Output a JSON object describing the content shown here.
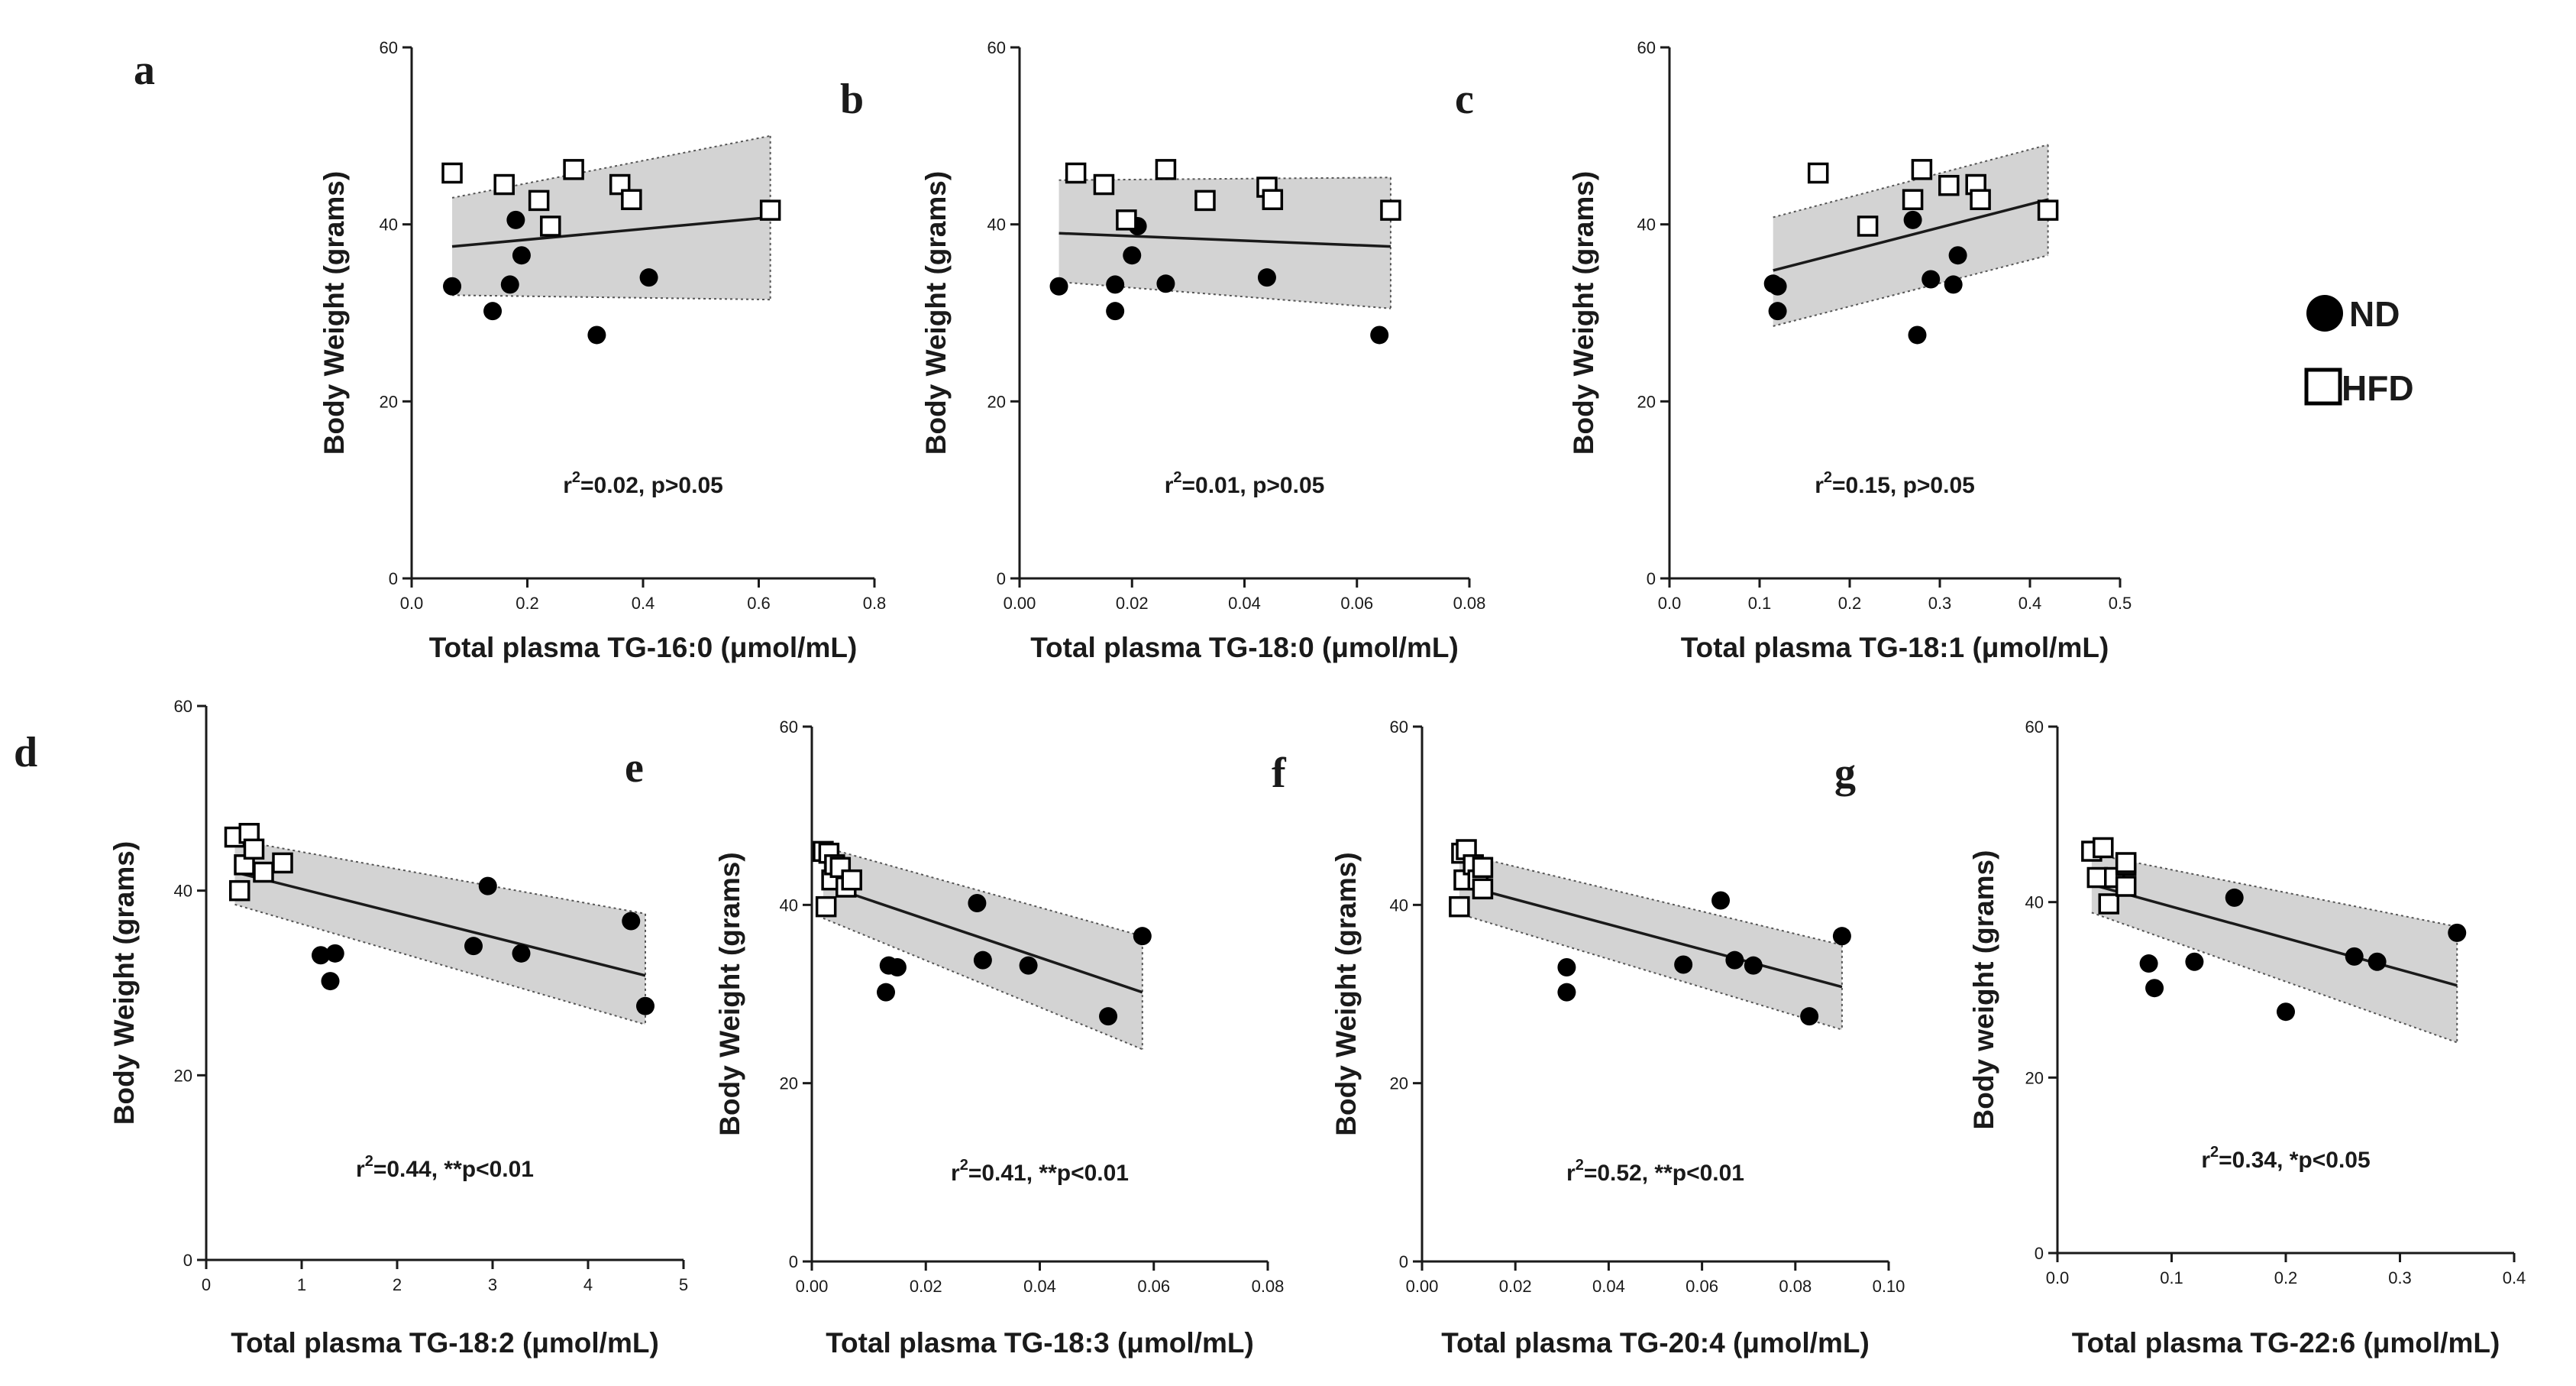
{
  "legend": {
    "nd_label": "ND",
    "hfd_label": "HFD"
  },
  "colors": {
    "band": "#d3d3d3",
    "line": "#1a1a1a",
    "nd_fill": "#000000",
    "hfd_fill": "#ffffff"
  },
  "chart_data": [
    {
      "panel": "a",
      "type": "scatter",
      "xlabel": "Total plasma TG-16:0 (μmol/mL)",
      "ylabel": "Body Weight (grams)",
      "xlim": [
        0,
        0.8
      ],
      "ylim": [
        0,
        60
      ],
      "xticks": [
        "0.0",
        "0.2",
        "0.4",
        "0.6",
        "0.8"
      ],
      "yticks": [
        "0",
        "20",
        "40",
        "60"
      ],
      "stat_prefix": "r",
      "stat_sup": "2",
      "stat_text": "=0.02, p>0.05",
      "fit": {
        "x0": 0.07,
        "x1": 0.62,
        "y0": 37.5,
        "y1": 40.8,
        "lo0": 32,
        "lo1": 31.5,
        "hi0": 43,
        "hi1": 50
      },
      "nd": [
        [
          0.07,
          33
        ],
        [
          0.14,
          30.2
        ],
        [
          0.17,
          33.2
        ],
        [
          0.18,
          40.5
        ],
        [
          0.19,
          36.5
        ],
        [
          0.32,
          27.5
        ],
        [
          0.41,
          34
        ]
      ],
      "hfd": [
        [
          0.07,
          45.8
        ],
        [
          0.16,
          44.5
        ],
        [
          0.22,
          42.7
        ],
        [
          0.24,
          39.8
        ],
        [
          0.28,
          46.2
        ],
        [
          0.36,
          44.5
        ],
        [
          0.38,
          42.8
        ],
        [
          0.62,
          41.6
        ]
      ]
    },
    {
      "panel": "b",
      "type": "scatter",
      "xlabel": "Total plasma TG-18:0 (μmol/mL)",
      "ylabel": "Body Weight (grams)",
      "xlim": [
        0,
        0.08
      ],
      "ylim": [
        0,
        60
      ],
      "xticks": [
        "0.00",
        "0.02",
        "0.04",
        "0.06",
        "0.08"
      ],
      "yticks": [
        "0",
        "20",
        "40",
        "60"
      ],
      "stat_prefix": "r",
      "stat_sup": "2",
      "stat_text": "=0.01, p>0.05",
      "fit": {
        "x0": 0.007,
        "x1": 0.066,
        "y0": 39,
        "y1": 37.5,
        "lo0": 33.5,
        "lo1": 30.5,
        "hi0": 45,
        "hi1": 45.3
      },
      "nd": [
        [
          0.007,
          33
        ],
        [
          0.017,
          30.2
        ],
        [
          0.017,
          33.2
        ],
        [
          0.02,
          36.5
        ],
        [
          0.021,
          39.8
        ],
        [
          0.026,
          33.3
        ],
        [
          0.044,
          34
        ],
        [
          0.064,
          27.5
        ]
      ],
      "hfd": [
        [
          0.01,
          45.8
        ],
        [
          0.015,
          44.5
        ],
        [
          0.019,
          40.5
        ],
        [
          0.026,
          46.2
        ],
        [
          0.033,
          42.7
        ],
        [
          0.044,
          44.2
        ],
        [
          0.045,
          42.8
        ],
        [
          0.066,
          41.6
        ]
      ]
    },
    {
      "panel": "c",
      "type": "scatter",
      "xlabel": "Total plasma TG-18:1 (μmol/mL)",
      "ylabel": "Body Weight (grams)",
      "xlim": [
        0,
        0.5
      ],
      "ylim": [
        0,
        60
      ],
      "xticks": [
        "0.0",
        "0.1",
        "0.2",
        "0.3",
        "0.4",
        "0.5"
      ],
      "yticks": [
        "0",
        "20",
        "40",
        "60"
      ],
      "stat_prefix": "r",
      "stat_sup": "2",
      "stat_text": "=0.15, p>0.05",
      "fit": {
        "x0": 0.115,
        "x1": 0.42,
        "y0": 34.8,
        "y1": 42.8,
        "lo0": 28.5,
        "lo1": 36.5,
        "hi0": 40.8,
        "hi1": 49
      },
      "nd": [
        [
          0.115,
          33.3
        ],
        [
          0.12,
          30.2
        ],
        [
          0.12,
          33
        ],
        [
          0.27,
          40.5
        ],
        [
          0.275,
          27.5
        ],
        [
          0.29,
          33.8
        ],
        [
          0.315,
          33.2
        ],
        [
          0.32,
          36.5
        ]
      ],
      "hfd": [
        [
          0.165,
          45.8
        ],
        [
          0.22,
          39.8
        ],
        [
          0.27,
          42.8
        ],
        [
          0.28,
          46.2
        ],
        [
          0.31,
          44.4
        ],
        [
          0.34,
          44.5
        ],
        [
          0.345,
          42.8
        ],
        [
          0.42,
          41.6
        ]
      ]
    },
    {
      "panel": "d",
      "type": "scatter",
      "xlabel": "Total plasma TG-18:2 (μmol/mL)",
      "ylabel": "Body Weight (grams)",
      "xlim": [
        0,
        5
      ],
      "ylim": [
        0,
        60
      ],
      "xticks": [
        "0",
        "1",
        "2",
        "3",
        "4",
        "5"
      ],
      "yticks": [
        "0",
        "20",
        "40",
        "60"
      ],
      "stat_prefix": "r",
      "stat_sup": "2",
      "stat_text": "=0.44, **p<0.01",
      "fit": {
        "x0": 0.3,
        "x1": 4.6,
        "y0": 42,
        "y1": 30.8,
        "lo0": 38.5,
        "lo1": 25.5,
        "hi0": 45.5,
        "hi1": 37.5
      },
      "nd": [
        [
          1.2,
          33
        ],
        [
          1.3,
          30.2
        ],
        [
          1.35,
          33.2
        ],
        [
          2.8,
          34
        ],
        [
          2.95,
          40.5
        ],
        [
          3.3,
          33.2
        ],
        [
          4.45,
          36.7
        ],
        [
          4.6,
          27.5
        ]
      ],
      "hfd": [
        [
          0.3,
          45.8
        ],
        [
          0.35,
          40
        ],
        [
          0.4,
          42.8
        ],
        [
          0.45,
          46.2
        ],
        [
          0.5,
          44.5
        ],
        [
          0.6,
          42
        ],
        [
          0.8,
          43
        ]
      ]
    },
    {
      "panel": "e",
      "type": "scatter",
      "xlabel": "Total plasma TG-18:3 (μmol/mL)",
      "ylabel": "Body Weight (grams)",
      "xlim": [
        0,
        0.08
      ],
      "ylim": [
        0,
        60
      ],
      "xticks": [
        "0.00",
        "0.02",
        "0.04",
        "0.06",
        "0.08"
      ],
      "yticks": [
        "0",
        "20",
        "40",
        "60"
      ],
      "stat_prefix": "r",
      "stat_sup": "2",
      "stat_text": "=0.41, **p<0.01",
      "fit": {
        "x0": 0.002,
        "x1": 0.058,
        "y0": 42.3,
        "y1": 30.2,
        "lo0": 38.5,
        "lo1": 23.8,
        "hi0": 46.5,
        "hi1": 36.5
      },
      "nd": [
        [
          0.013,
          30.2
        ],
        [
          0.0135,
          33.2
        ],
        [
          0.015,
          33
        ],
        [
          0.029,
          40.2
        ],
        [
          0.03,
          33.8
        ],
        [
          0.038,
          33.2
        ],
        [
          0.052,
          27.5
        ],
        [
          0.058,
          36.5
        ]
      ],
      "hfd": [
        [
          0.002,
          46
        ],
        [
          0.0025,
          39.8
        ],
        [
          0.003,
          45.8
        ],
        [
          0.0035,
          42.8
        ],
        [
          0.004,
          44.5
        ],
        [
          0.005,
          44.2
        ],
        [
          0.006,
          42
        ],
        [
          0.007,
          42.8
        ]
      ]
    },
    {
      "panel": "f",
      "type": "scatter",
      "xlabel": "Total plasma TG-20:4 (μmol/mL)",
      "ylabel": "Body Weight (grams)",
      "xlim": [
        0,
        0.1
      ],
      "ylim": [
        0,
        60
      ],
      "xticks": [
        "0.00",
        "0.02",
        "0.04",
        "0.06",
        "0.08",
        "0.10"
      ],
      "yticks": [
        "0",
        "20",
        "40",
        "60"
      ],
      "stat_prefix": "r",
      "stat_sup": "2",
      "stat_text": "=0.52, **p<0.01",
      "fit": {
        "x0": 0.008,
        "x1": 0.09,
        "y0": 42.3,
        "y1": 30.8,
        "lo0": 39,
        "lo1": 26,
        "hi0": 45.8,
        "hi1": 35.5
      },
      "nd": [
        [
          0.031,
          33
        ],
        [
          0.031,
          30.2
        ],
        [
          0.056,
          33.3
        ],
        [
          0.064,
          40.5
        ],
        [
          0.067,
          33.8
        ],
        [
          0.071,
          33.2
        ],
        [
          0.083,
          27.5
        ],
        [
          0.09,
          36.5
        ]
      ],
      "hfd": [
        [
          0.008,
          39.8
        ],
        [
          0.0085,
          45.8
        ],
        [
          0.009,
          42.8
        ],
        [
          0.0095,
          46.2
        ],
        [
          0.011,
          44.5
        ],
        [
          0.012,
          42.8
        ],
        [
          0.013,
          41.8
        ],
        [
          0.013,
          44.2
        ]
      ]
    },
    {
      "panel": "g",
      "type": "scatter",
      "xlabel": "Total plasma TG-22:6 (μmol/mL)",
      "ylabel": "Body weight (grams)",
      "xlim": [
        0,
        0.4
      ],
      "ylim": [
        0,
        60
      ],
      "xticks": [
        "0.0",
        "0.1",
        "0.2",
        "0.3",
        "0.4"
      ],
      "yticks": [
        "0",
        "20",
        "40",
        "60"
      ],
      "stat_prefix": "r",
      "stat_sup": "2",
      "stat_text": "=0.34, *p<0.05",
      "fit": {
        "x0": 0.03,
        "x1": 0.35,
        "y0": 42,
        "y1": 30.5,
        "lo0": 38.8,
        "lo1": 24,
        "hi0": 45.5,
        "hi1": 37.2
      },
      "nd": [
        [
          0.08,
          33
        ],
        [
          0.085,
          30.2
        ],
        [
          0.12,
          33.2
        ],
        [
          0.155,
          40.5
        ],
        [
          0.2,
          27.5
        ],
        [
          0.26,
          33.8
        ],
        [
          0.28,
          33.2
        ],
        [
          0.35,
          36.5
        ]
      ],
      "hfd": [
        [
          0.03,
          45.8
        ],
        [
          0.035,
          42.8
        ],
        [
          0.04,
          46.2
        ],
        [
          0.045,
          39.8
        ],
        [
          0.05,
          42.8
        ],
        [
          0.06,
          44.2
        ],
        [
          0.06,
          44.5
        ],
        [
          0.06,
          41.8
        ]
      ]
    }
  ]
}
